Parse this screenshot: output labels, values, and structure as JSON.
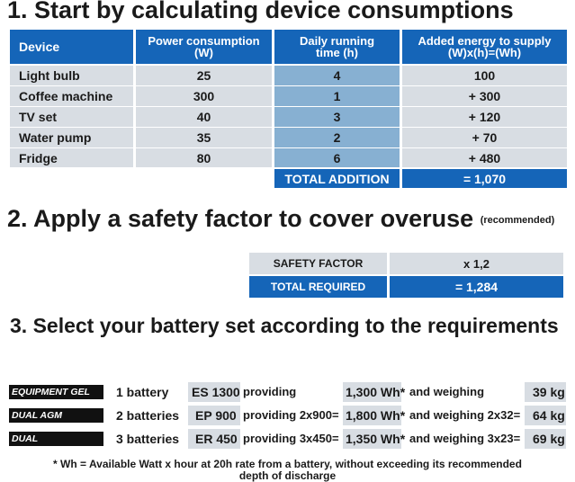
{
  "section1": {
    "title": "1. Start by calculating device consumptions"
  },
  "table": {
    "headers": [
      "Device",
      "Power consumption\n(W)",
      "Daily running\ntime (h)",
      "Added energy to supply\n(W)x(h)=(Wh)"
    ],
    "rows": [
      {
        "device": "Light bulb",
        "power": "25",
        "time": "4",
        "energy": "100"
      },
      {
        "device": "Coffee machine",
        "power": "300",
        "time": "1",
        "energy": "+ 300"
      },
      {
        "device": "TV set",
        "power": "40",
        "time": "3",
        "energy": "+ 120"
      },
      {
        "device": "Water pump",
        "power": "35",
        "time": "2",
        "energy": "+ 70"
      },
      {
        "device": "Fridge",
        "power": "80",
        "time": "6",
        "energy": "+ 480"
      }
    ],
    "total_label": "TOTAL ADDITION",
    "total_value": "= 1,070"
  },
  "section2": {
    "title": "2. Apply a safety factor to cover overuse",
    "note": "(recommended)"
  },
  "safety": {
    "factor_label": "SAFETY FACTOR",
    "factor_value": "x 1,2",
    "required_label": "TOTAL REQUIRED",
    "required_value": "= 1,284"
  },
  "section3": {
    "title": "3. Select your battery set according to the requirements"
  },
  "batteries": [
    {
      "tag": "EQUIPMENT GEL",
      "count": "1 battery",
      "model": "ES 1300",
      "providing": "providing",
      "wh": "1,300 Wh*",
      "weighing": "and weighing",
      "weight": "39 kg"
    },
    {
      "tag": "DUAL AGM",
      "count": "2 batteries",
      "model": "EP 900",
      "providing": "providing 2x900=",
      "wh": "1,800 Wh*",
      "weighing": "and weighing 2x32=",
      "weight": "64 kg"
    },
    {
      "tag": "DUAL",
      "count": "3 batteries",
      "model": "ER 450",
      "providing": "providing 3x450=",
      "wh": "1,350 Wh*",
      "weighing": "and weighing 3x23=",
      "weight": "69 kg"
    }
  ],
  "footnote": {
    "line1": "* Wh = Available Watt x hour at 20h rate from a battery, without exceeding its recommended",
    "line2": "depth of discharge"
  },
  "colors": {
    "header_blue": "#1565b8",
    "light_blue": "#87b0d2",
    "light_grey": "#d8dde3",
    "tag_black": "#111111"
  }
}
